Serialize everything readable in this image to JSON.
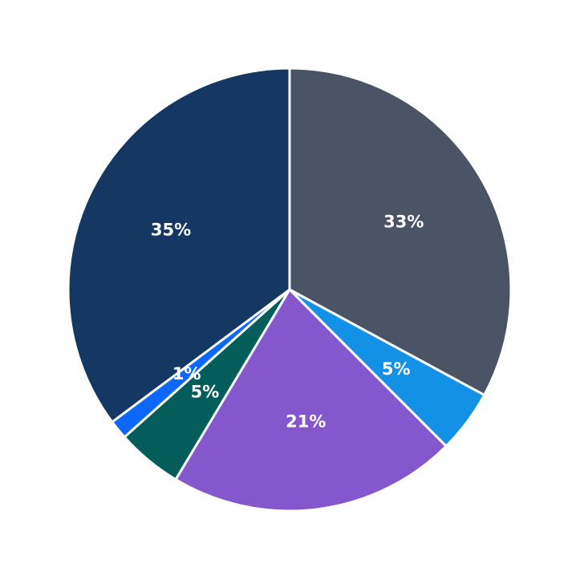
{
  "chart_data": {
    "type": "pie",
    "title": "",
    "start_angle_deg": 90,
    "direction": "clockwise",
    "slices": [
      {
        "label": "33%",
        "value": 32.9,
        "color": "#4a5464"
      },
      {
        "label": "5%",
        "value": 4.6,
        "color": "#1391e6"
      },
      {
        "label": "21%",
        "value": 21.1,
        "color": "#8557cc"
      },
      {
        "label": "5%",
        "value": 4.8,
        "color": "#045d5b"
      },
      {
        "label": "1%",
        "value": 1.4,
        "color": "#0c67fb"
      },
      {
        "label": "35%",
        "value": 35.2,
        "color": "#143862"
      }
    ],
    "legend": null
  }
}
